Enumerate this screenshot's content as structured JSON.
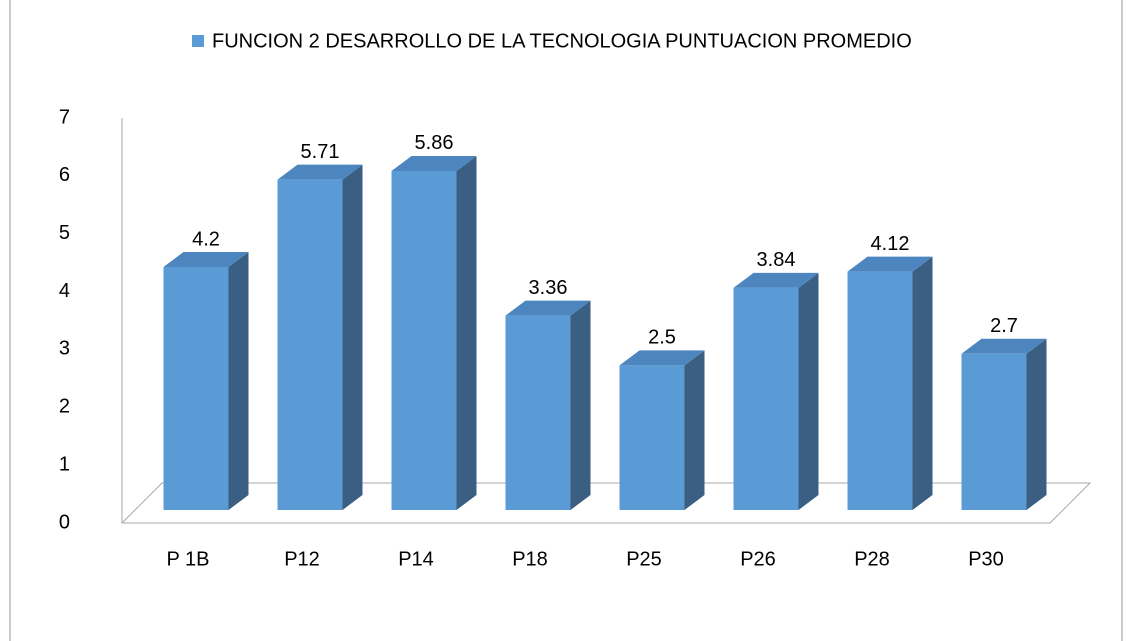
{
  "chart_data": {
    "type": "bar3d",
    "legend": "FUNCION 2 DESARROLLO DE LA TECNOLOGIA PUNTUACION PROMEDIO",
    "categories": [
      "P 1B",
      "P12",
      "P14",
      "P18",
      "P25",
      "P26",
      "P28",
      "P30"
    ],
    "values": [
      4.2,
      5.71,
      5.86,
      3.36,
      2.5,
      3.84,
      4.12,
      2.7
    ],
    "color": "#5b9bd5",
    "ylim": [
      0,
      7
    ],
    "yticks": [
      0,
      1,
      2,
      3,
      4,
      5,
      6,
      7
    ],
    "grid": false
  }
}
